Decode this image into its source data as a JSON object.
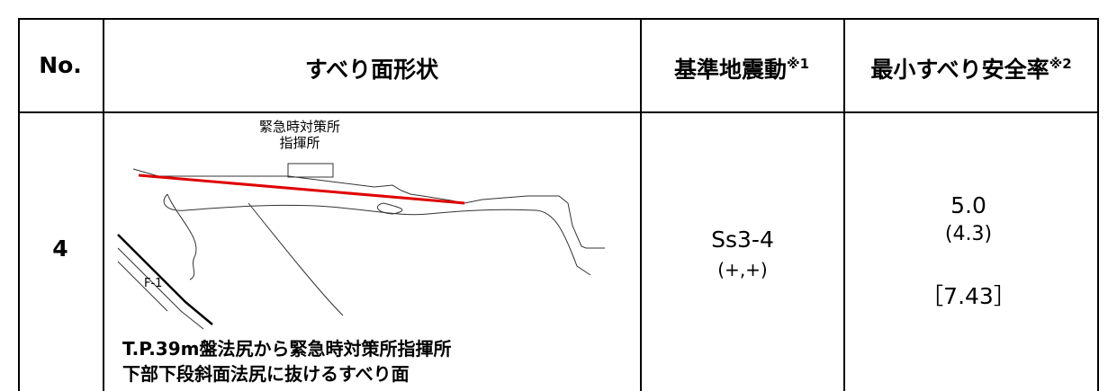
{
  "table": {
    "header": {
      "no": "No.",
      "shape": "すべり面形状",
      "motion": "基準地震動",
      "motion_note": "※1",
      "factor": "最小すべり安全率",
      "factor_note": "※2"
    },
    "rows": [
      {
        "no": "4",
        "diagram_labels": [
          "緊急時対策所",
          "指揮所",
          "F-1"
        ],
        "caption": [
          "T.P.39m盤法尻から緊急時対策所指揮所",
          "下部下段斜面法尻に抜けるすべり面"
        ],
        "motion": "Ss3-4",
        "motion_sign": "(+,+)",
        "factor": "5.0",
        "factor_sub": "(4.3)",
        "factor_bracket": "［7.43］"
      }
    ]
  }
}
